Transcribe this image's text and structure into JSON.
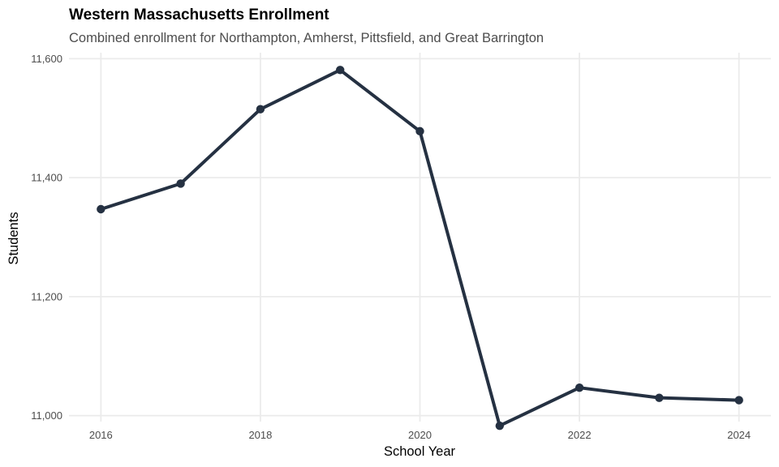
{
  "chart_data": {
    "type": "line",
    "title": "Western Massachusetts Enrollment",
    "subtitle": "Combined enrollment for Northampton, Amherst, Pittsfield, and Great Barrington",
    "xlabel": "School Year",
    "ylabel": "Students",
    "x": [
      2016,
      2017,
      2018,
      2019,
      2020,
      2021,
      2022,
      2023,
      2024
    ],
    "series": [
      {
        "name": "Students",
        "color": "#253142",
        "values": [
          11347,
          11390,
          11515,
          11581,
          11478,
          10983,
          11047,
          11030,
          11026
        ]
      }
    ],
    "xlim": [
      2015.6,
      2024.4
    ],
    "ylim": [
      10990,
      11610
    ],
    "x_ticks": [
      2016,
      2018,
      2020,
      2022,
      2024
    ],
    "x_tick_labels": [
      "2016",
      "2018",
      "2020",
      "2022",
      "2024"
    ],
    "y_ticks": [
      11000,
      11200,
      11400,
      11600
    ],
    "y_tick_labels": [
      "11,000",
      "11,200",
      "11,400",
      "11,600"
    ],
    "grid": true,
    "legend": "none"
  }
}
